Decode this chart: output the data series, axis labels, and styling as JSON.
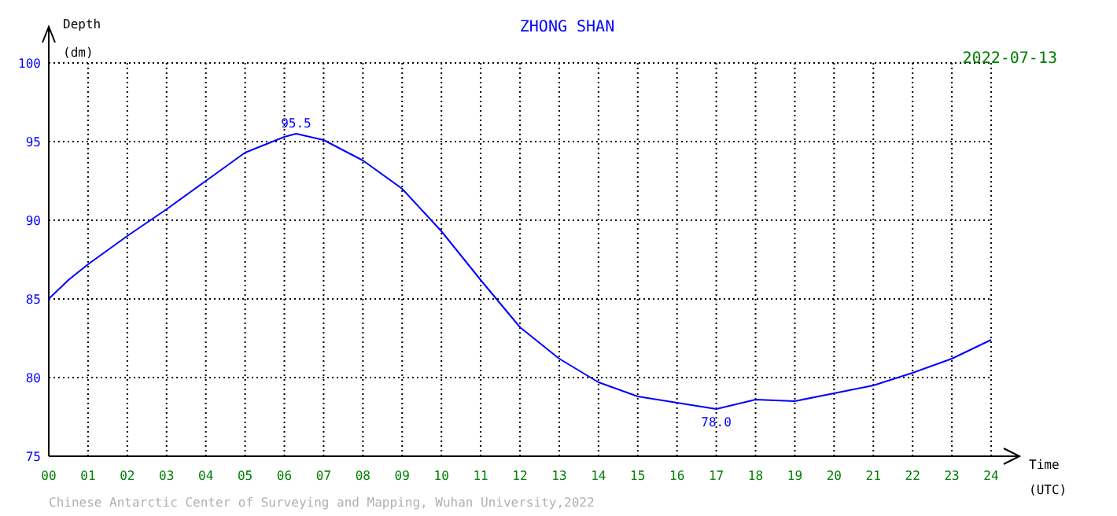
{
  "chart_data": {
    "type": "line",
    "title": "ZHONG SHAN",
    "subtitle": "2022-07-13",
    "xlabel": "Time (UTC)",
    "ylabel": "Depth (dm)",
    "x": [
      0,
      0.5,
      1,
      2,
      3,
      4,
      5,
      6,
      6.3,
      7,
      8,
      9,
      10,
      11,
      12,
      13,
      14,
      15,
      16,
      17,
      18,
      19,
      20,
      21,
      22,
      23,
      24
    ],
    "series": [
      {
        "color": "#0000ff",
        "values": [
          85.0,
          86.2,
          87.2,
          89.0,
          90.7,
          92.5,
          94.3,
          95.3,
          95.5,
          95.1,
          93.8,
          92.0,
          89.3,
          86.2,
          83.2,
          81.2,
          79.7,
          78.8,
          78.4,
          78.0,
          78.6,
          78.5,
          79.0,
          79.5,
          80.3,
          81.2,
          82.4
        ]
      }
    ],
    "xlim": [
      0,
      24
    ],
    "xticks": [
      {
        "value": 0,
        "label": "00"
      },
      {
        "value": 1,
        "label": "01"
      },
      {
        "value": 2,
        "label": "02"
      },
      {
        "value": 3,
        "label": "03"
      },
      {
        "value": 4,
        "label": "04"
      },
      {
        "value": 5,
        "label": "05"
      },
      {
        "value": 6,
        "label": "06"
      },
      {
        "value": 7,
        "label": "07"
      },
      {
        "value": 8,
        "label": "08"
      },
      {
        "value": 9,
        "label": "09"
      },
      {
        "value": 10,
        "label": "10"
      },
      {
        "value": 11,
        "label": "11"
      },
      {
        "value": 12,
        "label": "12"
      },
      {
        "value": 13,
        "label": "13"
      },
      {
        "value": 14,
        "label": "14"
      },
      {
        "value": 15,
        "label": "15"
      },
      {
        "value": 16,
        "label": "16"
      },
      {
        "value": 17,
        "label": "17"
      },
      {
        "value": 18,
        "label": "18"
      },
      {
        "value": 19,
        "label": "19"
      },
      {
        "value": 20,
        "label": "20"
      },
      {
        "value": 21,
        "label": "21"
      },
      {
        "value": 22,
        "label": "22"
      },
      {
        "value": 23,
        "label": "23"
      },
      {
        "value": 24,
        "label": "24"
      }
    ],
    "ylim": [
      75,
      100
    ],
    "yticks": [
      75,
      80,
      85,
      90,
      95,
      100
    ],
    "grid": true,
    "marker": "none",
    "line_style": "solid",
    "annotations": [
      {
        "text": "95.5",
        "x": 6.3,
        "y": 95.5
      },
      {
        "text": "78.0",
        "x": 17,
        "y": 78.0
      },
      "Chinese Antarctic Center of Surveying and Mapping, Wuhan University,2022"
    ]
  }
}
